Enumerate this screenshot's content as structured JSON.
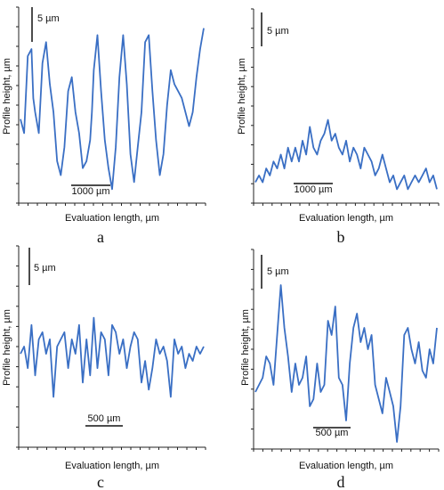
{
  "chart_data": [
    {
      "type": "line",
      "panel_label": "a",
      "ylabel": "Profile height, µm",
      "xlabel": "Evaluation length, µm",
      "y_scale_bar": "5 µm",
      "x_scale_bar": "1000 µm",
      "color": "#3a6fc4",
      "grid": false,
      "y_range": [
        -10,
        18
      ],
      "x_range": [
        0,
        5000
      ],
      "series": [
        {
          "x": [
            0,
            100,
            200,
            300,
            350,
            400,
            500,
            600,
            700,
            800,
            900,
            1000,
            1100,
            1200,
            1300,
            1400,
            1500,
            1600,
            1700,
            1800,
            1900,
            1950,
            2000,
            2100,
            2200,
            2300,
            2400,
            2500,
            2600,
            2700,
            2800,
            2900,
            3000,
            3100,
            3200,
            3300,
            3400,
            3500,
            3600,
            3700,
            3800,
            3900,
            4000,
            4100,
            4200,
            4300,
            4400,
            4500,
            4600,
            4700,
            4800,
            4900,
            5000
          ],
          "y": [
            2,
            0,
            11,
            12,
            5,
            3,
            0,
            10,
            13,
            7,
            3,
            -4,
            -6,
            -2,
            6,
            8,
            3,
            0,
            -5,
            -4,
            -1,
            3,
            9,
            14,
            6,
            -1,
            -5,
            -8,
            -2,
            8,
            14,
            7,
            -3,
            -7,
            -2,
            3,
            13,
            14,
            6,
            -1,
            -6,
            -3,
            4,
            9,
            7,
            6,
            5,
            3,
            1,
            3,
            8,
            12,
            15
          ]
        }
      ]
    },
    {
      "type": "line",
      "panel_label": "b",
      "ylabel": "Profile height, µm",
      "xlabel": "Evaluation length, µm",
      "y_scale_bar": "5 µm",
      "x_scale_bar": "1000 µm",
      "color": "#3a6fc4",
      "grid": false,
      "y_range": [
        -10,
        18
      ],
      "x_range": [
        0,
        5000
      ],
      "series": [
        {
          "x": [
            0,
            100,
            200,
            300,
            400,
            500,
            600,
            700,
            800,
            900,
            1000,
            1100,
            1200,
            1300,
            1400,
            1500,
            1600,
            1700,
            1800,
            1900,
            2000,
            2100,
            2200,
            2300,
            2400,
            2500,
            2600,
            2700,
            2800,
            2900,
            3000,
            3100,
            3200,
            3300,
            3400,
            3500,
            3600,
            3700,
            3800,
            3900,
            4000,
            4100,
            4200,
            4300,
            4400,
            4500,
            4600,
            4700,
            4800,
            4900,
            5000
          ],
          "y": [
            -7,
            -6,
            -7,
            -5,
            -6,
            -4,
            -5,
            -3,
            -5,
            -2,
            -4,
            -2,
            -4,
            -1,
            -3,
            1,
            -2,
            -3,
            -1,
            0,
            2,
            -1,
            0,
            -2,
            -3,
            -1,
            -4,
            -2,
            -3,
            -5,
            -2,
            -3,
            -4,
            -6,
            -5,
            -3,
            -5,
            -7,
            -6,
            -8,
            -7,
            -6,
            -8,
            -7,
            -6,
            -7,
            -6,
            -5,
            -7,
            -6,
            -8
          ]
        }
      ]
    },
    {
      "type": "line",
      "panel_label": "c",
      "ylabel": "Profile height, µm",
      "xlabel": "Evaluation length, µm",
      "y_scale_bar": "5 µm",
      "x_scale_bar": "500 µm",
      "color": "#3a6fc4",
      "grid": false,
      "y_range": [
        -12,
        16
      ],
      "x_range": [
        0,
        2500
      ],
      "series": [
        {
          "x": [
            0,
            50,
            100,
            150,
            200,
            250,
            300,
            350,
            400,
            450,
            500,
            550,
            600,
            650,
            700,
            750,
            800,
            850,
            900,
            950,
            1000,
            1050,
            1100,
            1150,
            1200,
            1250,
            1300,
            1350,
            1400,
            1450,
            1500,
            1550,
            1600,
            1650,
            1700,
            1750,
            1800,
            1850,
            1900,
            1950,
            2000,
            2050,
            2100,
            2150,
            2200,
            2250,
            2300,
            2350,
            2400,
            2450,
            2500
          ],
          "y": [
            1,
            2,
            -1,
            5,
            -2,
            3,
            4,
            1,
            3,
            -5,
            2,
            3,
            4,
            -1,
            3,
            1,
            5,
            -3,
            3,
            -2,
            6,
            -1,
            4,
            3,
            -2,
            5,
            4,
            1,
            3,
            -1,
            2,
            4,
            3,
            -3,
            0,
            -4,
            -1,
            3,
            1,
            2,
            0,
            -5,
            3,
            1,
            2,
            -1,
            1,
            0,
            2,
            1,
            2
          ]
        }
      ]
    },
    {
      "type": "line",
      "panel_label": "d",
      "ylabel": "Profile height, µm",
      "xlabel": "Evaluation length, µm",
      "y_scale_bar": "5 µm",
      "x_scale_bar": "500 µm",
      "color": "#3a6fc4",
      "grid": false,
      "y_range": [
        -12,
        16
      ],
      "x_range": [
        0,
        2500
      ],
      "series": [
        {
          "x": [
            0,
            50,
            100,
            150,
            200,
            250,
            300,
            350,
            400,
            450,
            500,
            550,
            600,
            650,
            700,
            750,
            800,
            850,
            900,
            950,
            1000,
            1050,
            1100,
            1150,
            1200,
            1250,
            1300,
            1350,
            1400,
            1450,
            1500,
            1550,
            1600,
            1650,
            1700,
            1750,
            1800,
            1850,
            1900,
            1950,
            2000,
            2050,
            2100,
            2150,
            2200,
            2250,
            2300,
            2350,
            2400,
            2450,
            2500
          ],
          "y": [
            -4,
            -3,
            -2,
            1,
            0,
            -3,
            4,
            11,
            5,
            1,
            -4,
            0,
            -3,
            -2,
            1,
            -6,
            -5,
            0,
            -4,
            -3,
            6,
            4,
            8,
            -2,
            -3,
            -8,
            0,
            5,
            7,
            3,
            5,
            2,
            4,
            -3,
            -5,
            -7,
            -2,
            -4,
            -6,
            -11,
            -6,
            4,
            5,
            2,
            0,
            3,
            -1,
            -2,
            2,
            0,
            5
          ]
        }
      ]
    }
  ]
}
